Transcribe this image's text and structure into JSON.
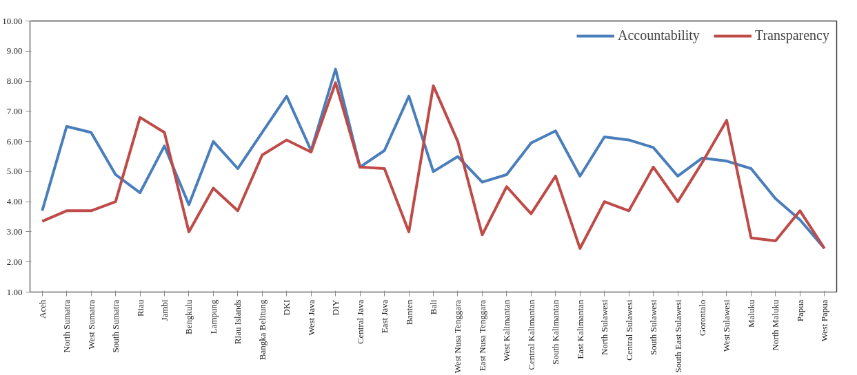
{
  "chart_data": {
    "type": "line",
    "categories": [
      "Aceh",
      "North Sumatra",
      "West Sumatra",
      "South Sumatra",
      "Riau",
      "Jambi",
      "Bengkulu",
      "Lampung",
      "Riau Islands",
      "Bangka Belitung",
      "DKI",
      "West Java",
      "DIY",
      "Central Java",
      "East Java",
      "Banten",
      "Bali",
      "West Nusa Tenggara",
      "East Nusa Tenggara",
      "West Kalimantan",
      "Central Kalimantan",
      "South Kalimantan",
      "East Kalimantan",
      "North Sulawesi",
      "Central Sulawesi",
      "South Sulawesi",
      "South East Sulawesi",
      "Gorontalo",
      "West Sulawesi",
      "Maluku",
      "North Maluku",
      "Papua",
      "West Papua"
    ],
    "series": [
      {
        "name": "Accountability",
        "color": "#4a7ebb",
        "values": [
          3.7,
          6.5,
          6.3,
          4.9,
          4.3,
          5.85,
          3.9,
          6.0,
          5.1,
          6.3,
          7.5,
          5.7,
          8.4,
          5.15,
          5.7,
          7.5,
          5.0,
          5.5,
          4.65,
          4.9,
          5.95,
          6.35,
          4.85,
          6.15,
          6.05,
          5.8,
          4.85,
          5.45,
          5.35,
          5.1,
          4.1,
          3.4,
          2.45
        ]
      },
      {
        "name": "Transparency",
        "color": "#be4b48",
        "values": [
          3.35,
          3.7,
          3.7,
          4.0,
          6.8,
          6.3,
          3.0,
          4.45,
          3.7,
          5.55,
          6.05,
          5.65,
          7.95,
          5.15,
          5.1,
          3.0,
          7.85,
          6.0,
          2.9,
          4.5,
          3.6,
          4.85,
          2.45,
          4.0,
          3.7,
          5.15,
          4.0,
          5.3,
          6.7,
          2.8,
          2.7,
          3.7,
          2.45
        ]
      }
    ],
    "ylim": [
      1,
      10
    ],
    "yticks": [
      {
        "value": 1,
        "label": "1.00"
      },
      {
        "value": 2,
        "label": "2.00"
      },
      {
        "value": 3,
        "label": "3.00"
      },
      {
        "value": 4,
        "label": "4.00"
      },
      {
        "value": 5,
        "label": "5.00"
      },
      {
        "value": 6,
        "label": "6.00"
      },
      {
        "value": 7,
        "label": "7.00"
      },
      {
        "value": 8,
        "label": "8.00"
      },
      {
        "value": 9,
        "label": "9.00"
      },
      {
        "value": 10,
        "label": "10.00"
      }
    ],
    "grid": false,
    "legend": "top right",
    "marker": "none",
    "line_style": "solid"
  }
}
